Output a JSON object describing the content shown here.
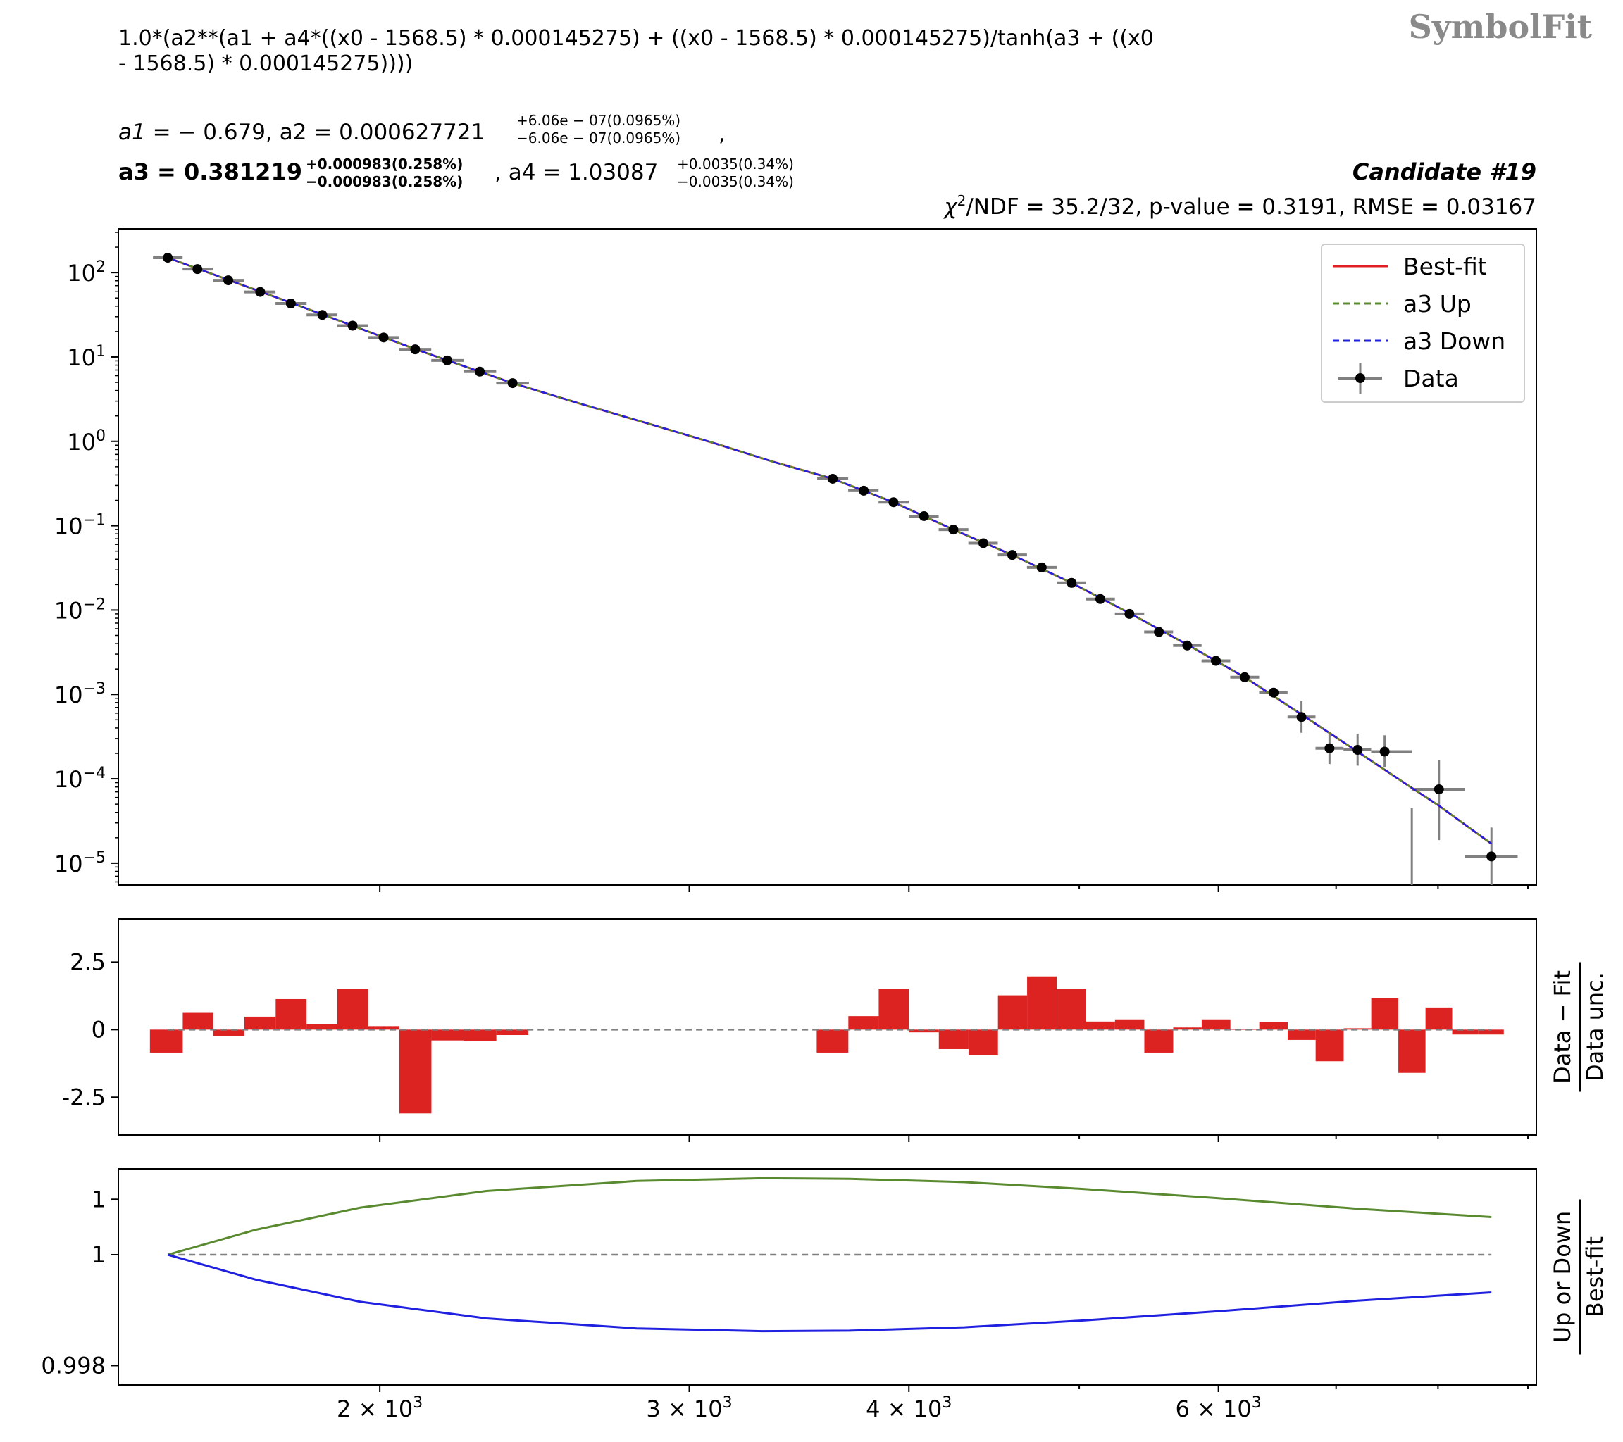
{
  "brand": {
    "logo_text": "SymbolFit"
  },
  "header": {
    "formula_line1": "1.0*(a2**(a1 + a4*((x0 - 1568.5) * 0.000145275) + ((x0 - 1568.5) * 0.000145275)/tanh(a3 + ((x0",
    "formula_line2": "- 1568.5) * 0.000145275))))",
    "a1": {
      "name": "a1",
      "value": "− 0.679"
    },
    "a2": {
      "name": "a2",
      "value": "0.000627721",
      "up": "+6.06e − 07(0.0965%)",
      "down": "−6.06e − 07(0.0965%)"
    },
    "a3": {
      "name": "a3",
      "value": "0.381219",
      "up": "+0.000983(0.258%)",
      "down": "−0.000983(0.258%)"
    },
    "a4": {
      "name": "a4",
      "value": "1.03087",
      "up": "+0.0035(0.34%)",
      "down": "−0.0035(0.34%)"
    },
    "candidate": "Candidate #19",
    "stats_chi": "χ",
    "stats_rest": "/NDF = 35.2/32, p-value = 0.3191, RMSE = 0.03167"
  },
  "chart_data": [
    {
      "panel": "main",
      "type": "scatter",
      "xscale": "log",
      "yscale": "log",
      "xlim": [
        1420,
        9100
      ],
      "ylim": [
        5.5e-06,
        330
      ],
      "yticks": [
        "10^2",
        "10^1",
        "10^0",
        "10^-1",
        "10^-2",
        "10^-3",
        "10^-4",
        "10^-5"
      ],
      "legend_placement": "upper-right",
      "legend": [
        "Best-fit",
        "a3 Up",
        "a3 Down",
        "Data"
      ],
      "colors": {
        "best_fit": "#e02020",
        "a3_up": "#5a8a30",
        "a3_down": "#2020e0",
        "data": "#000000",
        "errorbar": "#808080"
      },
      "data": [
        {
          "x": 1515,
          "y": 150
        },
        {
          "x": 1575,
          "y": 110
        },
        {
          "x": 1640,
          "y": 81
        },
        {
          "x": 1710,
          "y": 59
        },
        {
          "x": 1780,
          "y": 43
        },
        {
          "x": 1855,
          "y": 31.5
        },
        {
          "x": 1930,
          "y": 23.5
        },
        {
          "x": 2010,
          "y": 17
        },
        {
          "x": 2095,
          "y": 12.3
        },
        {
          "x": 2185,
          "y": 9.1
        },
        {
          "x": 2280,
          "y": 6.7
        },
        {
          "x": 2380,
          "y": 4.9
        },
        {
          "x": 3620,
          "y": 0.36
        },
        {
          "x": 3770,
          "y": 0.26
        },
        {
          "x": 3920,
          "y": 0.19
        },
        {
          "x": 4080,
          "y": 0.13
        },
        {
          "x": 4240,
          "y": 0.09
        },
        {
          "x": 4410,
          "y": 0.062
        },
        {
          "x": 4580,
          "y": 0.045
        },
        {
          "x": 4760,
          "y": 0.032
        },
        {
          "x": 4950,
          "y": 0.021
        },
        {
          "x": 5140,
          "y": 0.0135
        },
        {
          "x": 5340,
          "y": 0.009
        },
        {
          "x": 5550,
          "y": 0.0055
        },
        {
          "x": 5760,
          "y": 0.0038
        },
        {
          "x": 5980,
          "y": 0.0025
        },
        {
          "x": 6210,
          "y": 0.0016
        },
        {
          "x": 6450,
          "y": 0.00105
        },
        {
          "x": 6690,
          "y": 0.00054
        },
        {
          "x": 6940,
          "y": 0.00023
        },
        {
          "x": 7200,
          "y": 0.00022
        },
        {
          "x": 7460,
          "y": 0.00021
        },
        {
          "x": 8010,
          "y": 7.5e-05
        },
        {
          "x": 8580,
          "y": 1.2e-05
        }
      ],
      "zero_bin_x": 7730,
      "fit_curve": [
        {
          "x": 1515,
          "y": 150
        },
        {
          "x": 1640,
          "y": 82
        },
        {
          "x": 1780,
          "y": 44
        },
        {
          "x": 1930,
          "y": 23.5
        },
        {
          "x": 2095,
          "y": 12.4
        },
        {
          "x": 2280,
          "y": 6.7
        },
        {
          "x": 2380,
          "y": 4.9
        },
        {
          "x": 2600,
          "y": 2.8
        },
        {
          "x": 2850,
          "y": 1.6
        },
        {
          "x": 3100,
          "y": 0.95
        },
        {
          "x": 3350,
          "y": 0.57
        },
        {
          "x": 3620,
          "y": 0.36
        },
        {
          "x": 3920,
          "y": 0.19
        },
        {
          "x": 4240,
          "y": 0.09
        },
        {
          "x": 4580,
          "y": 0.045
        },
        {
          "x": 4950,
          "y": 0.021
        },
        {
          "x": 5340,
          "y": 0.0092
        },
        {
          "x": 5760,
          "y": 0.0039
        },
        {
          "x": 6210,
          "y": 0.0016
        },
        {
          "x": 6690,
          "y": 0.00058
        },
        {
          "x": 7200,
          "y": 0.00021
        },
        {
          "x": 7730,
          "y": 7.8e-05
        },
        {
          "x": 8010,
          "y": 4.8e-05
        },
        {
          "x": 8580,
          "y": 1.7e-05
        }
      ]
    },
    {
      "panel": "residuals",
      "type": "bar",
      "xscale": "log",
      "ylabel": "Data − Fit / Data unc.",
      "ylabel_num": "Data − Fit",
      "ylabel_den": "Data unc.",
      "ylim": [
        -3.9,
        4.1
      ],
      "yticks": [
        2.5,
        0,
        -2.5
      ],
      "ytick_labels": [
        "2.5",
        "0",
        "-2.5"
      ],
      "color": "#dd2222",
      "bins": [
        {
          "x0": 1480,
          "x1": 1545,
          "v": -0.85
        },
        {
          "x0": 1545,
          "x1": 1608,
          "v": 0.62
        },
        {
          "x0": 1608,
          "x1": 1675,
          "v": -0.25
        },
        {
          "x0": 1675,
          "x1": 1745,
          "v": 0.48
        },
        {
          "x0": 1745,
          "x1": 1817,
          "v": 1.13
        },
        {
          "x0": 1817,
          "x1": 1892,
          "v": 0.2
        },
        {
          "x0": 1892,
          "x1": 1970,
          "v": 1.52
        },
        {
          "x0": 1970,
          "x1": 2052,
          "v": 0.13
        },
        {
          "x0": 2052,
          "x1": 2140,
          "v": -3.1
        },
        {
          "x0": 2140,
          "x1": 2232,
          "v": -0.4
        },
        {
          "x0": 2232,
          "x1": 2330,
          "v": -0.42
        },
        {
          "x0": 2330,
          "x1": 2430,
          "v": -0.2
        },
        {
          "x0": 3545,
          "x1": 3695,
          "v": -0.85
        },
        {
          "x0": 3695,
          "x1": 3845,
          "v": 0.5
        },
        {
          "x0": 3845,
          "x1": 4000,
          "v": 1.52
        },
        {
          "x0": 4000,
          "x1": 4160,
          "v": -0.1
        },
        {
          "x0": 4160,
          "x1": 4325,
          "v": -0.72
        },
        {
          "x0": 4325,
          "x1": 4495,
          "v": -0.95
        },
        {
          "x0": 4495,
          "x1": 4670,
          "v": 1.27
        },
        {
          "x0": 4670,
          "x1": 4855,
          "v": 1.97
        },
        {
          "x0": 4855,
          "x1": 5045,
          "v": 1.5
        },
        {
          "x0": 5045,
          "x1": 5240,
          "v": 0.3
        },
        {
          "x0": 5240,
          "x1": 5445,
          "v": 0.38
        },
        {
          "x0": 5445,
          "x1": 5655,
          "v": -0.85
        },
        {
          "x0": 5655,
          "x1": 5870,
          "v": 0.08
        },
        {
          "x0": 5870,
          "x1": 6095,
          "v": 0.38
        },
        {
          "x0": 6095,
          "x1": 6330,
          "v": 0.0
        },
        {
          "x0": 6330,
          "x1": 6570,
          "v": 0.27
        },
        {
          "x0": 6570,
          "x1": 6815,
          "v": -0.38
        },
        {
          "x0": 6815,
          "x1": 7070,
          "v": -1.17
        },
        {
          "x0": 7070,
          "x1": 7330,
          "v": 0.05
        },
        {
          "x0": 7330,
          "x1": 7595,
          "v": 1.17
        },
        {
          "x0": 7595,
          "x1": 7870,
          "v": -1.6
        },
        {
          "x0": 7870,
          "x1": 8150,
          "v": 0.82
        },
        {
          "x0": 8150,
          "x1": 8430,
          "v": -0.18
        },
        {
          "x0": 8430,
          "x1": 8720,
          "v": -0.18
        }
      ]
    },
    {
      "panel": "ratio",
      "type": "line",
      "xscale": "log",
      "ylabel": "Up or Down / Best-fit",
      "ylabel_num": "Up or Down",
      "ylabel_den": "Best-fit",
      "ylim": [
        0.99765,
        1.00155
      ],
      "yticks": [
        1.001,
        1.0,
        0.998
      ],
      "ytick_labels": [
        "1",
        "1",
        "0.998"
      ],
      "xticks": [
        2000,
        3000,
        4000,
        6000
      ],
      "xticks_minor": [
        5000,
        7000,
        8000,
        9000
      ],
      "xtick_labels": [
        "2 × 10^3",
        "3 × 10^3",
        "4 × 10^3",
        "6 × 10^3"
      ],
      "series": [
        {
          "name": "a3 Up",
          "color": "#5a8a30",
          "points": [
            {
              "x": 1515,
              "y": 1.0
            },
            {
              "x": 1700,
              "y": 1.00045
            },
            {
              "x": 1950,
              "y": 1.00085
            },
            {
              "x": 2300,
              "y": 1.00115
            },
            {
              "x": 2800,
              "y": 1.00133
            },
            {
              "x": 3300,
              "y": 1.00138
            },
            {
              "x": 3700,
              "y": 1.00137
            },
            {
              "x": 4300,
              "y": 1.00131
            },
            {
              "x": 5000,
              "y": 1.00119
            },
            {
              "x": 6000,
              "y": 1.00102
            },
            {
              "x": 7200,
              "y": 1.00083
            },
            {
              "x": 8580,
              "y": 1.00068
            }
          ]
        },
        {
          "name": "a3 Down",
          "color": "#2020e0",
          "points": [
            {
              "x": 1515,
              "y": 1.0
            },
            {
              "x": 1700,
              "y": 0.99955
            },
            {
              "x": 1950,
              "y": 0.99915
            },
            {
              "x": 2300,
              "y": 0.99885
            },
            {
              "x": 2800,
              "y": 0.99867
            },
            {
              "x": 3300,
              "y": 0.99862
            },
            {
              "x": 3700,
              "y": 0.99863
            },
            {
              "x": 4300,
              "y": 0.99869
            },
            {
              "x": 5000,
              "y": 0.99881
            },
            {
              "x": 6000,
              "y": 0.99898
            },
            {
              "x": 7200,
              "y": 0.99917
            },
            {
              "x": 8580,
              "y": 0.99932
            }
          ]
        }
      ]
    }
  ]
}
